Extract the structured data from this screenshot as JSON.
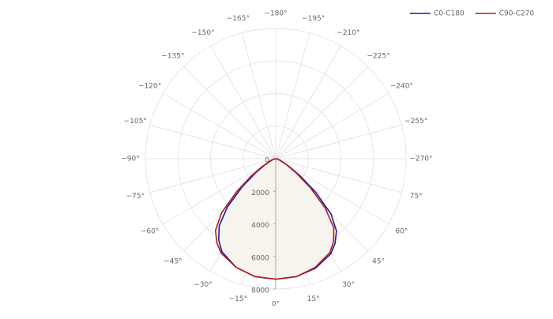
{
  "chart_data": {
    "type": "polar",
    "theta": [
      -90,
      -80,
      -70,
      -60,
      -55,
      -50,
      -45,
      -40,
      -35,
      -30,
      -20,
      -10,
      0,
      10,
      20,
      30,
      35,
      40,
      45,
      50,
      55,
      60,
      70,
      80,
      90
    ],
    "series": [
      {
        "name": "C0-C180",
        "color": "#1c1ca0",
        "values": [
          0,
          80,
          250,
          800,
          1500,
          2700,
          4200,
          5400,
          6100,
          6600,
          7100,
          7350,
          7400,
          7350,
          7150,
          6750,
          6350,
          5800,
          4800,
          3200,
          1800,
          950,
          300,
          100,
          0
        ]
      },
      {
        "name": "C90-C270",
        "color": "#b41a1a",
        "values": [
          0,
          100,
          300,
          950,
          1800,
          3100,
          4700,
          5750,
          6300,
          6700,
          7100,
          7350,
          7400,
          7350,
          7100,
          6650,
          6200,
          5550,
          4300,
          2800,
          1550,
          850,
          250,
          80,
          0
        ]
      }
    ],
    "rlim": [
      0,
      8000
    ],
    "rticks": [
      0,
      2000,
      4000,
      6000,
      8000
    ],
    "thetaticks": [
      {
        "value": 0,
        "label": "0°"
      },
      {
        "value": 15,
        "label": "15°"
      },
      {
        "value": 30,
        "label": "30°"
      },
      {
        "value": 45,
        "label": "45°"
      },
      {
        "value": 60,
        "label": "60°"
      },
      {
        "value": 75,
        "label": "75°"
      },
      {
        "value": -270,
        "label": "−270°"
      },
      {
        "value": -255,
        "label": "−255°"
      },
      {
        "value": -240,
        "label": "−240°"
      },
      {
        "value": -225,
        "label": "−225°"
      },
      {
        "value": -210,
        "label": "−210°"
      },
      {
        "value": -195,
        "label": "−195°"
      },
      {
        "value": -180,
        "label": "−180°"
      },
      {
        "value": -165,
        "label": "−165°"
      },
      {
        "value": -150,
        "label": "−150°"
      },
      {
        "value": -135,
        "label": "−135°"
      },
      {
        "value": -120,
        "label": "−120°"
      },
      {
        "value": -105,
        "label": "−105°"
      },
      {
        "value": -90,
        "label": "−90°"
      },
      {
        "value": -75,
        "label": "−75°"
      },
      {
        "value": -60,
        "label": "−60°"
      },
      {
        "value": -45,
        "label": "−45°"
      },
      {
        "value": -30,
        "label": "−30°"
      },
      {
        "value": -15,
        "label": "−15°"
      }
    ],
    "grid": true,
    "legend": "top-right"
  }
}
